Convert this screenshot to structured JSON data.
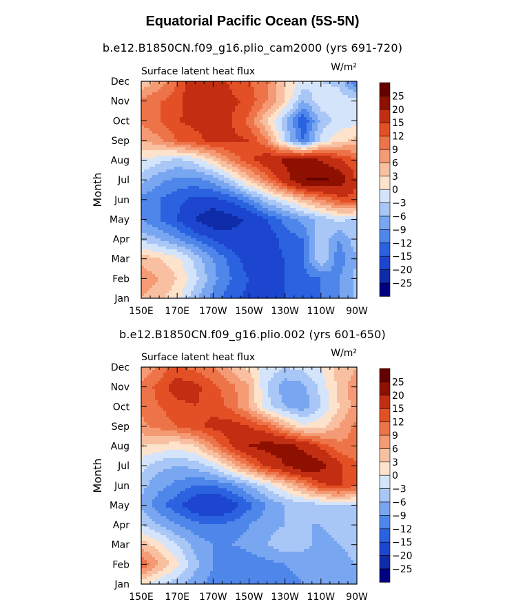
{
  "title": "Equatorial Pacific Ocean (5S-5N)",
  "colorbar": {
    "labels": [
      "25",
      "20",
      "15",
      "12",
      "9",
      "6",
      "3",
      "0",
      "−3",
      "−6",
      "−9",
      "−12",
      "−15",
      "−20",
      "−25"
    ],
    "colors": [
      "#000080",
      "#0f2ca8",
      "#1c46d0",
      "#2a62e0",
      "#4e86ea",
      "#79a6f0",
      "#a8c6f6",
      "#d4e4fb",
      "#fde2cc",
      "#f8c0a0",
      "#f49a74",
      "#ed7448",
      "#e45026",
      "#c22e12",
      "#8e1000",
      "#650000"
    ],
    "levels": [
      -25,
      -20,
      -15,
      -12,
      -9,
      -6,
      -3,
      0,
      3,
      6,
      9,
      12,
      15,
      20,
      25
    ]
  },
  "chart_data": [
    {
      "type": "heatmap",
      "title": "b.e12.B1850CN.f09_g16.plio_cam2000 (yrs 691-720)",
      "subtitle_left": "Surface latent heat flux",
      "units": "W/m²",
      "ylabel": "Month",
      "x_tick_labels": [
        "150E",
        "170E",
        "170W",
        "150W",
        "130W",
        "110W",
        "90W"
      ],
      "x_ticks_deg_east": [
        150,
        170,
        190,
        210,
        230,
        250,
        270
      ],
      "xlim": [
        150,
        270
      ],
      "y_tick_labels": [
        "Jan",
        "Feb",
        "Mar",
        "Apr",
        "May",
        "Jun",
        "Jul",
        "Aug",
        "Sep",
        "Oct",
        "Nov",
        "Dec"
      ],
      "x": [
        150,
        160,
        170,
        180,
        190,
        200,
        210,
        220,
        230,
        240,
        250,
        260,
        270
      ],
      "values": [
        [
          6,
          4,
          1,
          -5,
          -10,
          -14,
          -16,
          -16,
          -15,
          -14,
          -12,
          -9,
          -5
        ],
        [
          8,
          6,
          3,
          -2,
          -8,
          -12,
          -15,
          -16,
          -15,
          -13,
          -12,
          -9,
          -5
        ],
        [
          5,
          3,
          1,
          -4,
          -9,
          -13,
          -17,
          -16,
          -15,
          -12,
          -3,
          -11,
          -6
        ],
        [
          -4,
          -6,
          -9,
          -12,
          -15,
          -18,
          -19,
          -17,
          -14,
          -12,
          -3,
          -9,
          -4
        ],
        [
          -9,
          -12,
          -15,
          -20,
          -25,
          -22,
          -19,
          -15,
          -11,
          -8,
          -5,
          -2,
          -4
        ],
        [
          -10,
          -12,
          -14,
          -16,
          -16,
          -14,
          -10,
          -4,
          0,
          5,
          9,
          13,
          15
        ],
        [
          -5,
          -8,
          -10,
          -10,
          -8,
          -3,
          4,
          10,
          18,
          25,
          26,
          24,
          14
        ],
        [
          0,
          -2,
          -4,
          -2,
          3,
          9,
          14,
          18,
          21,
          22,
          20,
          16,
          12
        ],
        [
          6,
          8,
          12,
          14,
          16,
          16,
          15,
          9,
          -3,
          -12,
          -2,
          2,
          4
        ],
        [
          10,
          12,
          15,
          16,
          16,
          15,
          11,
          3,
          -5,
          -15,
          -5,
          -2,
          -1
        ],
        [
          10,
          12,
          13,
          19,
          19,
          16,
          14,
          9,
          3,
          -6,
          -1,
          -1,
          -2
        ],
        [
          3,
          7,
          12,
          19,
          19,
          14,
          12,
          10,
          3,
          -1,
          -3,
          -4,
          -12
        ]
      ]
    },
    {
      "type": "heatmap",
      "title": "b.e12.B1850CN.f09_g16.plio.002 (yrs 601-650)",
      "subtitle_left": "Surface latent heat flux",
      "units": "W/m²",
      "ylabel": "Month",
      "x_tick_labels": [
        "150E",
        "170E",
        "170W",
        "150W",
        "130W",
        "110W",
        "90W"
      ],
      "x_ticks_deg_east": [
        150,
        170,
        190,
        210,
        230,
        250,
        270
      ],
      "xlim": [
        150,
        270
      ],
      "y_tick_labels": [
        "Jan",
        "Feb",
        "Mar",
        "Apr",
        "May",
        "Jun",
        "Jul",
        "Aug",
        "Sep",
        "Oct",
        "Nov",
        "Dec"
      ],
      "x": [
        150,
        160,
        170,
        180,
        190,
        200,
        210,
        220,
        230,
        240,
        250,
        260,
        270
      ],
      "values": [
        [
          1,
          -2,
          -5,
          -8,
          -10,
          -11,
          -12,
          -11,
          -10,
          -9,
          -9,
          -8,
          -6
        ],
        [
          12,
          6,
          1,
          -5,
          -9,
          -12,
          -11,
          -10,
          -9,
          -8,
          -9,
          -7,
          -6
        ],
        [
          5,
          1,
          -3,
          -7,
          -9,
          -9,
          -8,
          -6,
          -4,
          -5,
          -7,
          -6,
          -5
        ],
        [
          -3,
          -6,
          -9,
          -11,
          -12,
          -11,
          -9,
          -7,
          -6,
          -6,
          -6,
          -5,
          -4
        ],
        [
          -7,
          -11,
          -14,
          -18,
          -20,
          -17,
          -13,
          -9,
          -6,
          -5,
          -4,
          -3,
          -3
        ],
        [
          -5,
          -8,
          -10,
          -12,
          -12,
          -10,
          -6,
          -2,
          3,
          8,
          14,
          16,
          12
        ],
        [
          -2,
          -5,
          -6,
          -5,
          -2,
          4,
          10,
          16,
          20,
          24,
          22,
          16,
          12
        ],
        [
          3,
          2,
          1,
          3,
          9,
          15,
          20,
          22,
          22,
          19,
          14,
          10,
          10
        ],
        [
          8,
          10,
          12,
          14,
          16,
          17,
          15,
          12,
          6,
          1,
          2,
          6,
          10
        ],
        [
          10,
          12,
          14,
          15,
          14,
          11,
          6,
          -2,
          -6,
          -8,
          -3,
          3,
          8
        ],
        [
          10,
          13,
          17,
          16,
          13,
          10,
          6,
          -3,
          -8,
          -7,
          -2,
          4,
          8
        ],
        [
          6,
          10,
          13,
          11,
          9,
          5,
          2,
          -1,
          -3,
          -2,
          0,
          4,
          6
        ]
      ]
    }
  ]
}
